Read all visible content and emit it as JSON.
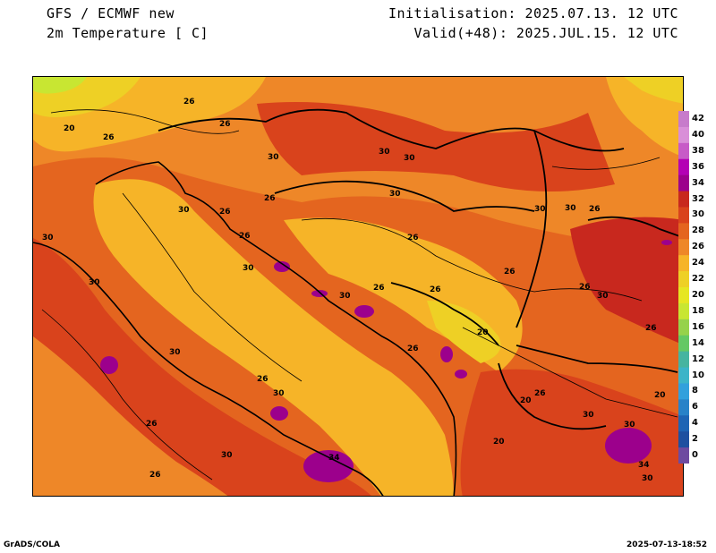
{
  "header": {
    "model": "GFS / ECMWF new",
    "field": "2m Temperature [ C]",
    "initialisation": "Initialisation: 2025.07.13. 12 UTC",
    "valid": "Valid(+48): 2025.JUL.15. 12 UTC"
  },
  "colorbar": {
    "levels": [
      "42",
      "40",
      "38",
      "36",
      "34",
      "32",
      "30",
      "28",
      "26",
      "24",
      "22",
      "20",
      "18",
      "16",
      "14",
      "12",
      "10",
      "8",
      "6",
      "4",
      "2",
      "0"
    ],
    "colors": [
      "#c77bcb",
      "#d98fd8",
      "#c75bc7",
      "#b400b4",
      "#9c008c",
      "#c8281e",
      "#d9431c",
      "#e4651f",
      "#ee8728",
      "#f6b428",
      "#eed025",
      "#e6e622",
      "#c8e632",
      "#96d24b",
      "#64c864",
      "#46b4a0",
      "#3cb4c8",
      "#32a0dc",
      "#2882c8",
      "#1e64b4",
      "#1e50a0",
      "#6e4ba0"
    ]
  },
  "map": {
    "contour_labels": [
      "26",
      "26",
      "20",
      "26",
      "30",
      "30",
      "30",
      "30",
      "30",
      "26",
      "26",
      "30",
      "26",
      "30",
      "30",
      "26",
      "30",
      "20",
      "26",
      "26",
      "26",
      "30",
      "30",
      "26",
      "26",
      "30",
      "26",
      "26",
      "30",
      "20",
      "30",
      "30",
      "20",
      "26",
      "26",
      "30",
      "26",
      "34",
      "30",
      "26",
      "34",
      "30",
      "20"
    ]
  },
  "footer": {
    "left": "GrADS/COLA",
    "right": "2025-07-13-18:52"
  }
}
